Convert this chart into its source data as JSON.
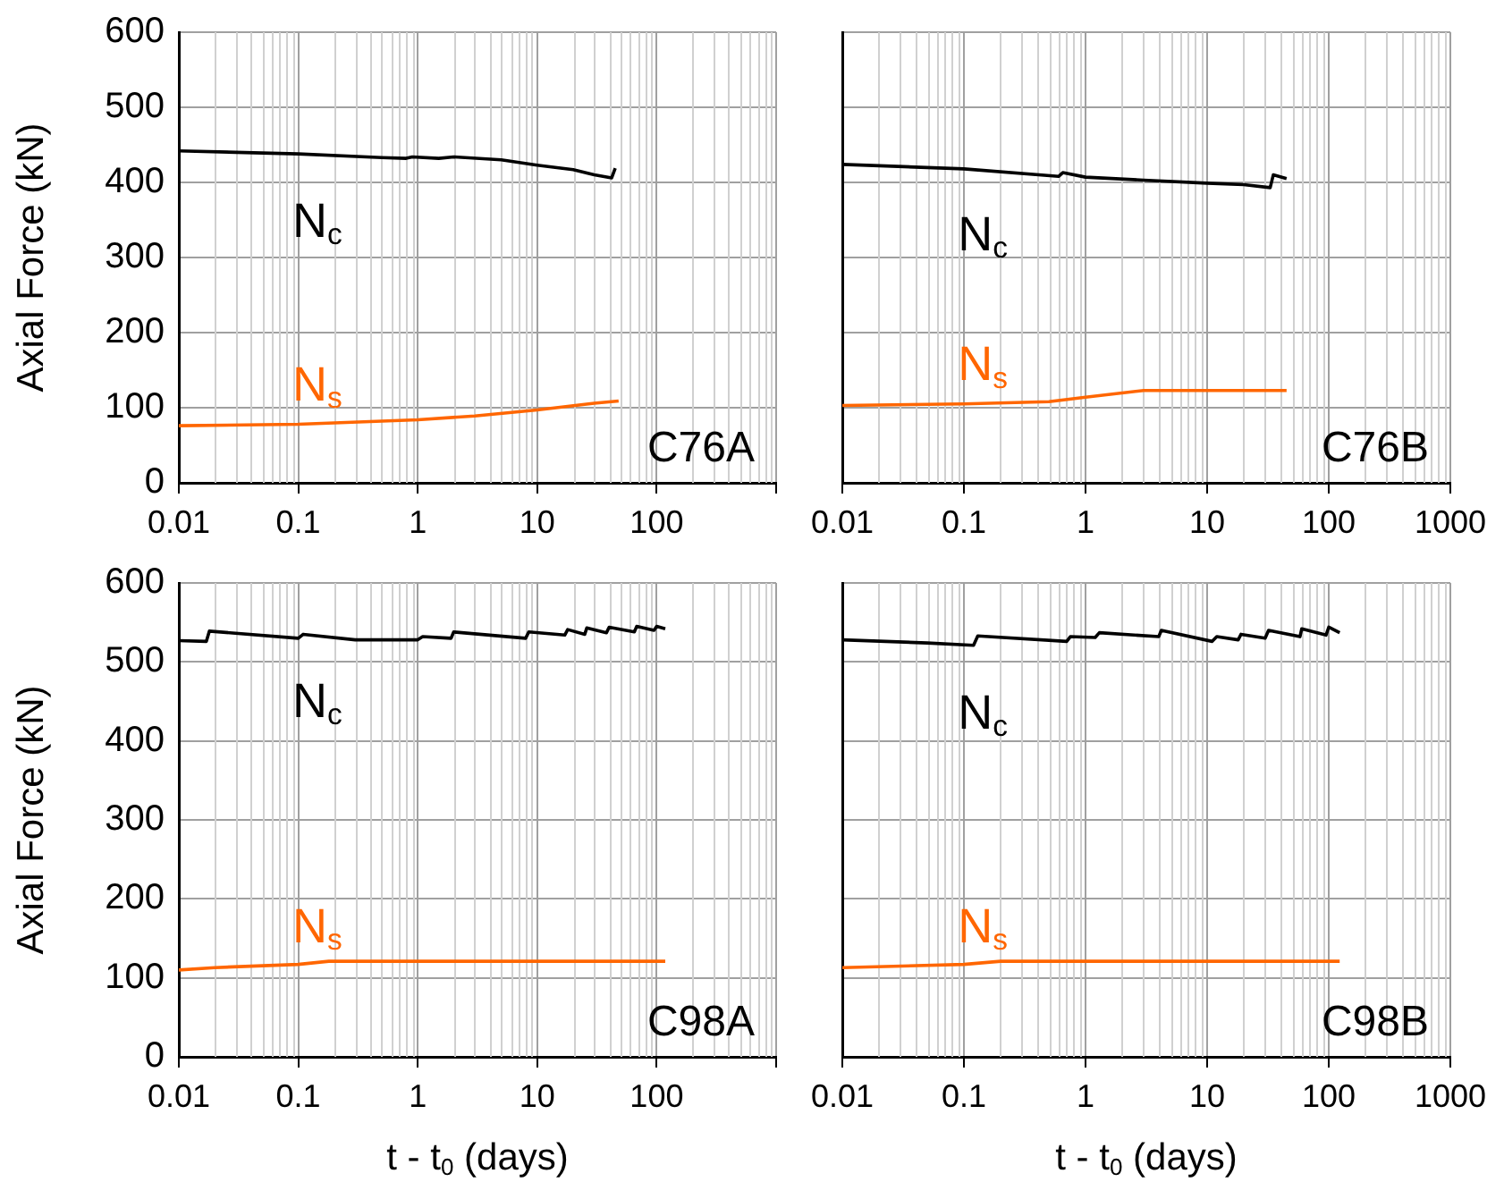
{
  "chart_data": [
    {
      "type": "line",
      "ylabel": "Axial Force (kN)",
      "xlim": [
        0.01,
        1000
      ],
      "xticks": [
        0.01,
        0.1,
        1,
        10,
        100,
        {
          "value": 1000,
          "label": null
        }
      ],
      "ylim": [
        0,
        600
      ],
      "yticks": [
        0,
        100,
        200,
        300,
        400,
        500,
        600
      ],
      "log": "x",
      "grid": true,
      "annotations": [
        "C76A"
      ],
      "series": [
        {
          "name": "N$_{c}$",
          "color": "#000000",
          "x": [
            0.01,
            0.1,
            0.5,
            0.8,
            0.9,
            1.5,
            2,
            5,
            10,
            20,
            30,
            42,
            45
          ],
          "values": [
            442,
            438,
            433,
            432,
            434,
            432,
            434,
            430,
            423,
            417,
            410,
            406,
            419
          ]
        },
        {
          "name": "N$_{s}$",
          "color": "#ff6600",
          "x": [
            0.01,
            0.1,
            1,
            3,
            10,
            30,
            48
          ],
          "values": [
            76,
            78,
            84,
            89,
            97,
            106,
            109
          ]
        }
      ]
    },
    {
      "type": "line",
      "xlim": [
        0.01,
        1000
      ],
      "xticks": [
        0.01,
        0.1,
        1,
        10,
        100,
        1000
      ],
      "ylim": [
        0,
        600
      ],
      "yticks": [
        0,
        100,
        200,
        300,
        400,
        500,
        600
      ],
      "log": "x",
      "grid": true,
      "tick_labels": "x",
      "annotations": [
        "C76B"
      ],
      "series": [
        {
          "name": "N$_{c}$",
          "color": "#000000",
          "x": [
            0.01,
            0.1,
            0.6,
            0.65,
            1,
            3,
            10,
            20,
            33,
            35,
            45
          ],
          "values": [
            424,
            418,
            408,
            413,
            407,
            403,
            399,
            397,
            393,
            410,
            405
          ]
        },
        {
          "name": "N$_{s}$",
          "color": "#ff6600",
          "x": [
            0.01,
            0.1,
            0.5,
            1,
            3,
            10,
            45
          ],
          "values": [
            103,
            105,
            108,
            114,
            123,
            123,
            123
          ]
        }
      ]
    },
    {
      "type": "line",
      "ylabel": "Axial Force (kN)",
      "xlabel": "t - t$_{0}$ (days)",
      "xlim": [
        0.01,
        1000
      ],
      "xticks": [
        0.01,
        0.1,
        1,
        10,
        100,
        {
          "value": 1000,
          "label": null
        }
      ],
      "ylim": [
        0,
        600
      ],
      "yticks": [
        0,
        100,
        200,
        300,
        400,
        500,
        600
      ],
      "log": "x",
      "grid": true,
      "annotations": [
        "C98A"
      ],
      "series": [
        {
          "name": "N$_{c}$",
          "color": "#000000",
          "x": [
            0.01,
            0.017,
            0.018,
            0.1,
            0.11,
            0.3,
            1,
            1.1,
            1.9,
            2,
            8,
            8.5,
            17,
            18,
            25,
            26,
            38,
            40,
            65,
            68,
            95,
            100,
            118
          ],
          "values": [
            527,
            526,
            539,
            530,
            535,
            528,
            528,
            532,
            530,
            538,
            530,
            538,
            534,
            541,
            535,
            543,
            537,
            544,
            538,
            545,
            540,
            545,
            542
          ]
        },
        {
          "name": "N$_{s}$",
          "color": "#ff6600",
          "x": [
            0.01,
            0.02,
            0.1,
            0.18,
            1,
            10,
            118
          ],
          "values": [
            110,
            113,
            117,
            121,
            121,
            121,
            121
          ]
        }
      ]
    },
    {
      "type": "line",
      "xlabel": "t - t$_{0}$ (days)",
      "xlim": [
        0.01,
        1000
      ],
      "xticks": [
        0.01,
        0.1,
        1,
        10,
        100,
        1000
      ],
      "ylim": [
        0,
        600
      ],
      "yticks": [
        0,
        100,
        200,
        300,
        400,
        500,
        600
      ],
      "log": "x",
      "grid": true,
      "tick_labels": "x",
      "annotations": [
        "C98B"
      ],
      "series": [
        {
          "name": "N$_{c}$",
          "color": "#000000",
          "x": [
            0.01,
            0.05,
            0.12,
            0.13,
            0.7,
            0.75,
            1.2,
            1.3,
            4,
            4.2,
            11,
            12,
            18,
            19,
            30,
            32,
            58,
            60,
            95,
            100,
            123
          ],
          "values": [
            528,
            524,
            521,
            533,
            526,
            532,
            531,
            537,
            532,
            540,
            526,
            532,
            528,
            535,
            530,
            540,
            532,
            542,
            534,
            544,
            537
          ]
        },
        {
          "name": "N$_{s}$",
          "color": "#ff6600",
          "x": [
            0.01,
            0.1,
            0.2,
            1,
            10,
            123
          ],
          "values": [
            113,
            117,
            121,
            121,
            121,
            121
          ]
        }
      ]
    }
  ]
}
